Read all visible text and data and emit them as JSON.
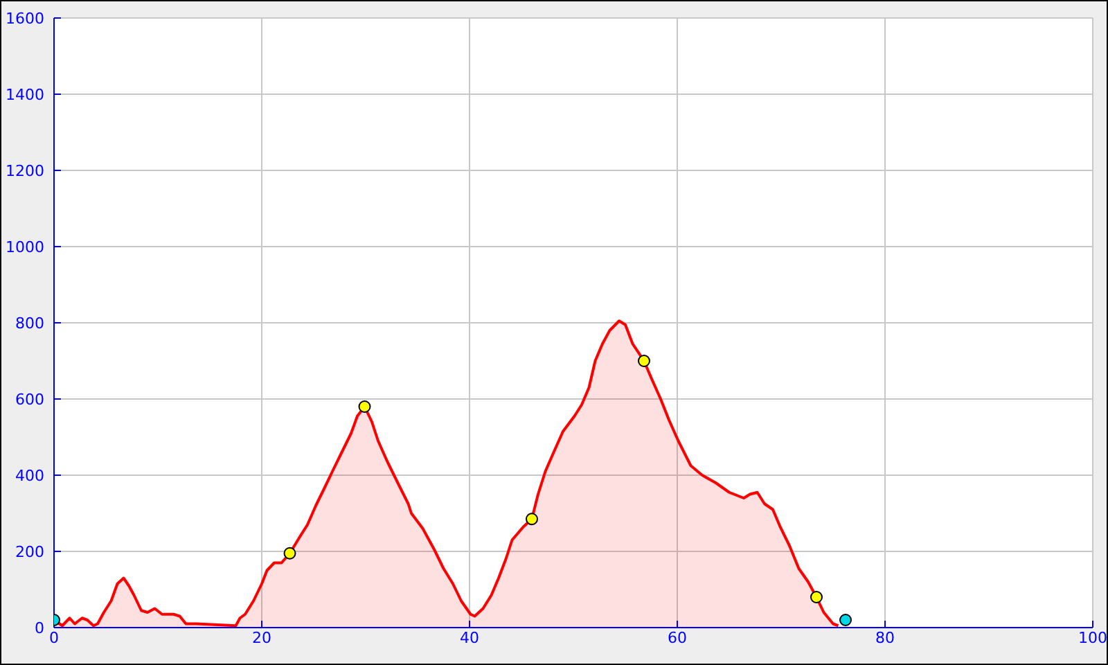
{
  "chart_data": {
    "type": "area",
    "xlim": [
      0,
      100
    ],
    "xticks": [
      0,
      20,
      40,
      60,
      80,
      100
    ],
    "ylim": [
      0,
      1600
    ],
    "yticks": [
      0,
      200,
      400,
      600,
      800,
      1000,
      1200,
      1400,
      1600
    ],
    "grid": true,
    "series": [
      {
        "color": "#ff0000",
        "x": [
          0,
          0.8,
          1.5,
          2.0,
          2.7,
          3.2,
          3.8,
          4.2,
          4.8,
          5.5,
          6.1,
          6.7,
          7.2,
          7.7,
          8.4,
          9.0,
          9.7,
          10.4,
          11.5,
          12.1,
          12.7,
          13.7,
          17.5,
          17.9,
          18.4,
          19.2,
          20.0,
          20.5,
          21.2,
          21.9,
          22.7,
          23.7,
          24.4,
          25.2,
          26.1,
          26.8,
          27.7,
          28.6,
          29.2,
          29.9,
          30.6,
          31.2,
          32.1,
          33.0,
          34.1,
          34.4,
          35.5,
          36.6,
          37.5,
          38.4,
          39.2,
          40.1,
          40.5,
          41.3,
          42.1,
          42.8,
          43.5,
          44.1,
          45.2,
          46.0,
          46.6,
          47.3,
          48.1,
          49.0,
          50.1,
          50.8,
          51.5,
          52.1,
          52.8,
          53.5,
          54.4,
          55.0,
          55.7,
          56.8,
          57.5,
          58.4,
          59.2,
          60.1,
          61.3,
          62.4,
          63.7,
          65.0,
          66.4,
          67.0,
          67.7,
          68.4,
          69.2,
          69.9,
          70.8,
          71.7,
          72.6,
          73.4,
          74.1,
          75.0,
          75.5
        ],
        "values": [
          20,
          5,
          25,
          10,
          25,
          20,
          5,
          10,
          40,
          70,
          115,
          130,
          110,
          85,
          45,
          40,
          50,
          35,
          35,
          30,
          10,
          10,
          5,
          25,
          35,
          70,
          115,
          150,
          170,
          170,
          195,
          240,
          270,
          320,
          370,
          410,
          460,
          510,
          555,
          580,
          540,
          490,
          435,
          385,
          325,
          300,
          260,
          205,
          155,
          115,
          70,
          35,
          30,
          50,
          85,
          130,
          180,
          230,
          265,
          285,
          350,
          410,
          460,
          515,
          555,
          585,
          630,
          700,
          745,
          780,
          805,
          795,
          745,
          700,
          655,
          600,
          545,
          490,
          425,
          400,
          380,
          355,
          340,
          350,
          355,
          325,
          310,
          265,
          215,
          155,
          120,
          80,
          40,
          10,
          5
        ]
      },
      {
        "type": "scatter",
        "color": "#ffff00",
        "marker": "circle",
        "x": [
          22.7,
          29.9,
          46.0,
          56.8,
          73.4
        ],
        "values": [
          195,
          580,
          285,
          700,
          80
        ]
      },
      {
        "type": "scatter",
        "color": "#00d8e8",
        "marker": "circle",
        "x": [
          0,
          76.2
        ],
        "values": [
          20,
          20
        ]
      }
    ]
  }
}
